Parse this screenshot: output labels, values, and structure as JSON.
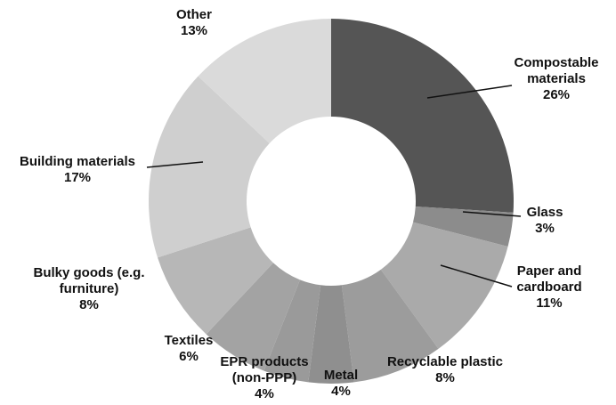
{
  "chart_data": {
    "type": "donut",
    "categories": [
      "Compostable materials",
      "Glass",
      "Paper and cardboard",
      "Recyclable plastic",
      "Metal",
      "EPR products (non-PPP)",
      "Textiles",
      "Bulky goods (e.g. furniture)",
      "Building materials",
      "Other"
    ],
    "values": [
      26,
      3,
      11,
      8,
      4,
      4,
      6,
      8,
      17,
      13
    ],
    "value_labels": [
      "26%",
      "3%",
      "11%",
      "8%",
      "4%",
      "4%",
      "6%",
      "8%",
      "17%",
      "13%"
    ],
    "colors": [
      "#555555",
      "#8c8c8c",
      "#aaaaaa",
      "#9c9c9c",
      "#8f8f8f",
      "#9a9a9a",
      "#a3a3a3",
      "#b7b7b7",
      "#cfcfcf",
      "#dadada"
    ]
  }
}
